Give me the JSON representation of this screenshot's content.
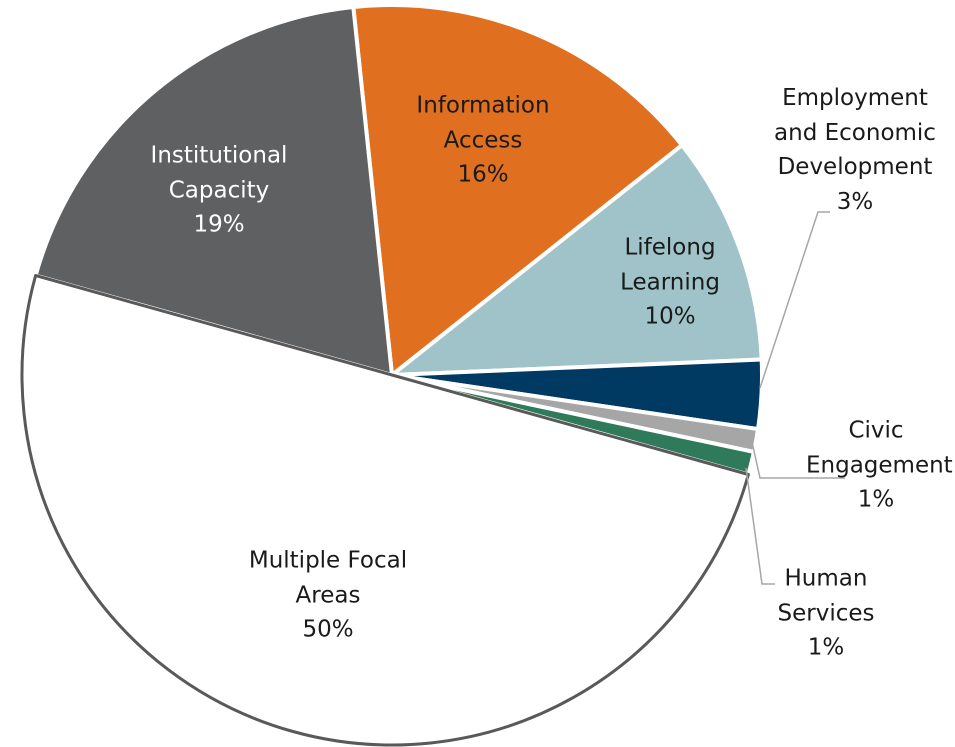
{
  "chart_data": {
    "type": "pie",
    "categories": [
      "Information Access",
      "Lifelong Learning",
      "Employment and Economic Development",
      "Civic Engagement",
      "Human Services",
      "Multiple Focal Areas",
      "Institutional Capacity"
    ],
    "values": [
      16,
      10,
      3,
      1,
      1,
      50,
      19
    ],
    "value_labels": [
      "16%",
      "10%",
      "3%",
      "1%",
      "1%",
      "50%",
      "19%"
    ],
    "colors": [
      "#e07020",
      "#9fc3c8",
      "#003a63",
      "#a6a6a6",
      "#2e7a5a",
      "#ffffff",
      "#5f6062"
    ]
  }
}
